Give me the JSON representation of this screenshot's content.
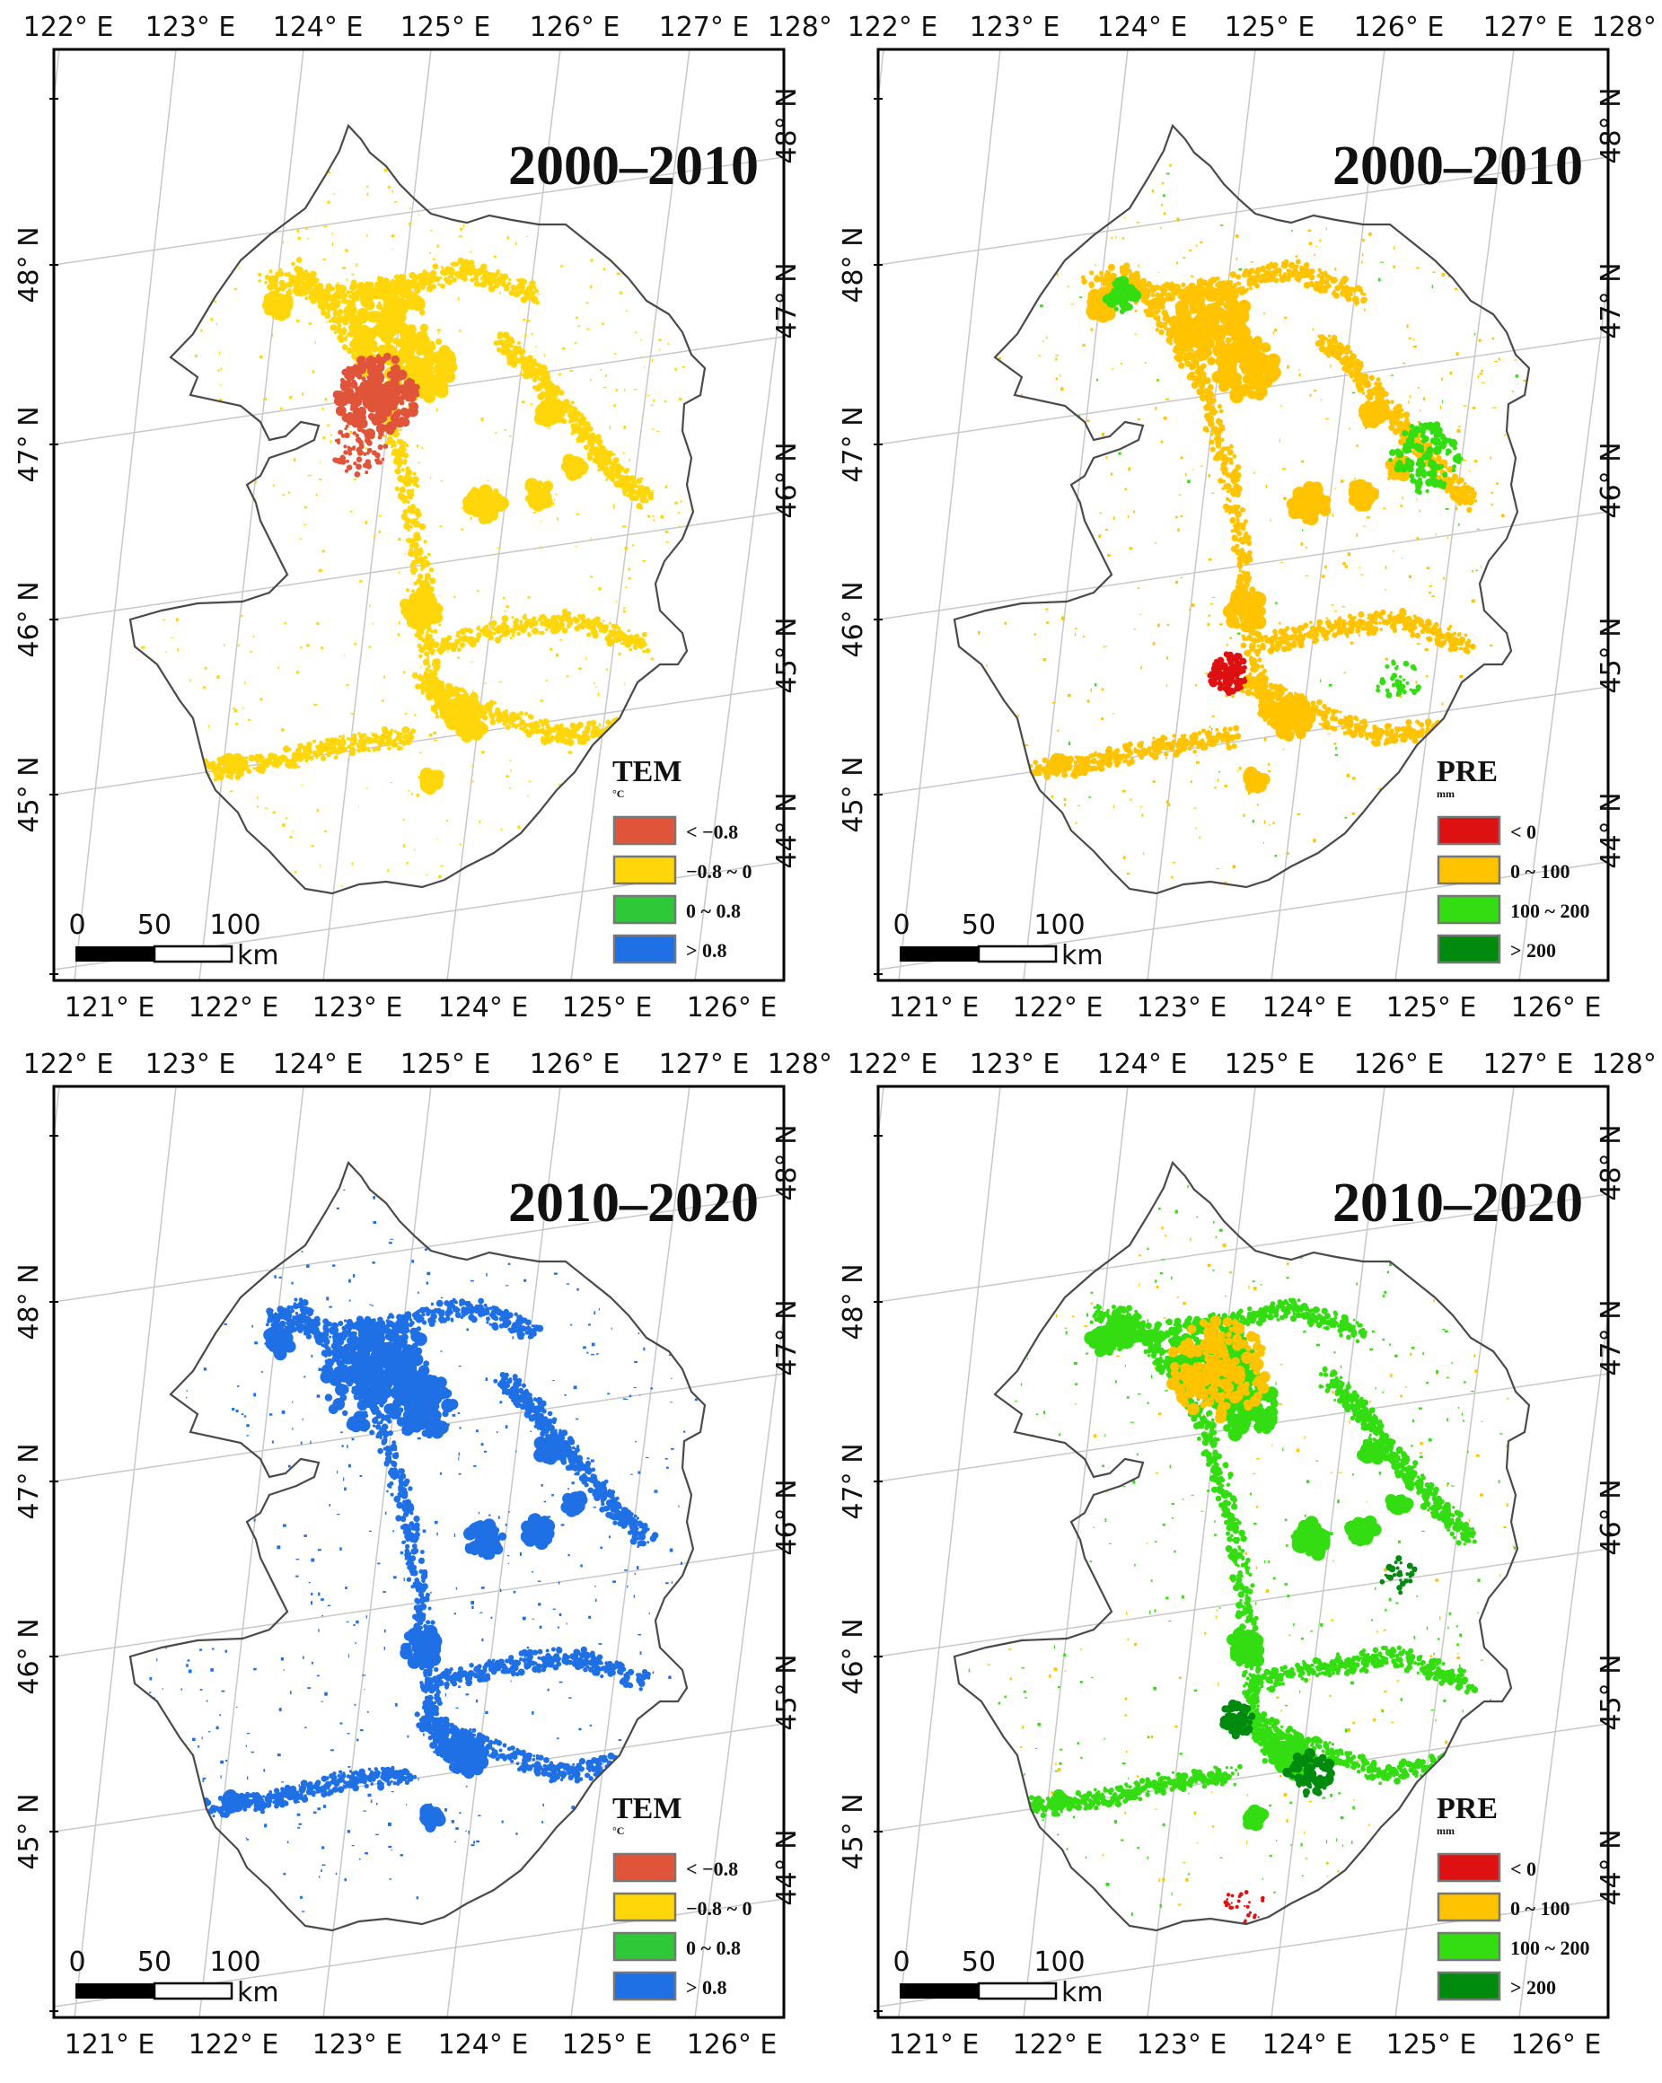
{
  "maps": [
    {
      "period": "2000–2010",
      "legend": {
        "title": "TEM",
        "unit": "°C",
        "items": [
          {
            "label": "< −0.8",
            "color": "#e0553a"
          },
          {
            "label": "−0.8 ~ 0",
            "color": "#ffd60a"
          },
          {
            "label": "0 ~ 0.8",
            "color": "#2ec838"
          },
          {
            "label": "> 0.8",
            "color": "#1f6fe5"
          }
        ]
      },
      "dominant_class": "−0.8 ~ 0",
      "hotspot_class": "< −0.8"
    },
    {
      "period": "2000–2010",
      "legend": {
        "title": "PRE",
        "unit": "mm",
        "items": [
          {
            "label": "< 0",
            "color": "#dd1111"
          },
          {
            "label": "0 ~ 100",
            "color": "#ffc300"
          },
          {
            "label": "100 ~ 200",
            "color": "#33dd11"
          },
          {
            "label": "> 200",
            "color": "#008a0e"
          }
        ]
      },
      "dominant_class": "0 ~ 100",
      "hotspot_class": "< 0"
    },
    {
      "period": "2010–2020",
      "legend": {
        "title": "TEM",
        "unit": "°C",
        "items": [
          {
            "label": "< −0.8",
            "color": "#e0553a"
          },
          {
            "label": "−0.8 ~ 0",
            "color": "#ffd60a"
          },
          {
            "label": "0 ~ 0.8",
            "color": "#2ec838"
          },
          {
            "label": "> 0.8",
            "color": "#1f6fe5"
          }
        ]
      },
      "dominant_class": "> 0.8",
      "hotspot_class": "> 0.8"
    },
    {
      "period": "2010–2020",
      "legend": {
        "title": "PRE",
        "unit": "mm",
        "items": [
          {
            "label": "< 0",
            "color": "#dd1111"
          },
          {
            "label": "0 ~ 100",
            "color": "#ffc300"
          },
          {
            "label": "100 ~ 200",
            "color": "#33dd11"
          },
          {
            "label": "> 200",
            "color": "#008a0e"
          }
        ]
      },
      "dominant_class": "100 ~ 200",
      "hotspot_class": "> 200"
    }
  ],
  "axes": {
    "top_longitudes": [
      "122° E",
      "123° E",
      "124° E",
      "125° E",
      "126° E",
      "127° E",
      "128° E"
    ],
    "bottom_longitudes": [
      "121° E",
      "122° E",
      "123° E",
      "124° E",
      "125° E",
      "126° E"
    ],
    "left_latitudes": [
      "48° N",
      "47° N",
      "46° N",
      "45° N"
    ],
    "right_latitudes": [
      "48° N",
      "47° N",
      "46° N",
      "45° N",
      "44° N"
    ]
  },
  "scale_bar": {
    "ticks": [
      "0",
      "50",
      "100"
    ],
    "unit": "km"
  }
}
